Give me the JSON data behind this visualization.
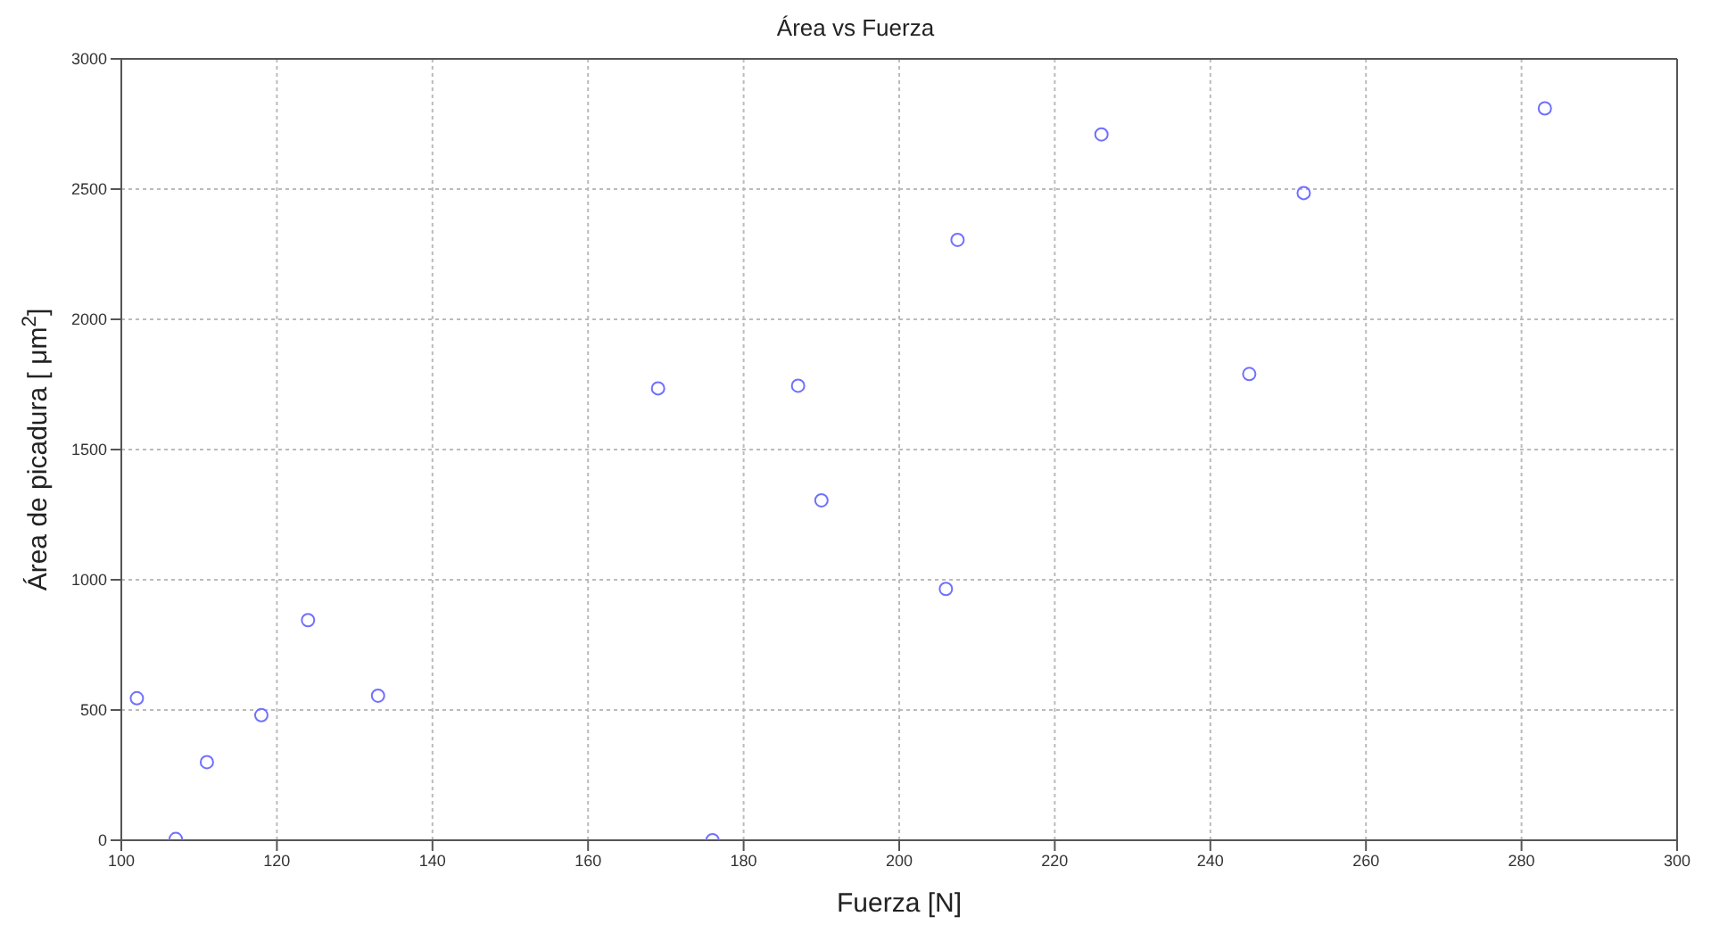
{
  "chart_data": {
    "type": "scatter",
    "title": "Área vs Fuerza",
    "xlabel": "Fuerza [N]",
    "ylabel": "Área de picadura [ μm$^{2}$]",
    "x": [
      102,
      107,
      111,
      118,
      124,
      133,
      169,
      176,
      187,
      190,
      206,
      207.5,
      226,
      245,
      252,
      283
    ],
    "values": [
      545,
      5,
      300,
      480,
      845,
      555,
      1735,
      0,
      1745,
      1305,
      965,
      2305,
      2710,
      1790,
      2485,
      2810
    ],
    "color": "#7070ff",
    "marker": "circle",
    "xlim": [
      100,
      300
    ],
    "xticks": [
      100,
      120,
      140,
      160,
      180,
      200,
      220,
      240,
      260,
      280,
      300
    ],
    "ylim": [
      0,
      3000
    ],
    "yticks": [
      0,
      500,
      1000,
      1500,
      2000,
      2500,
      3000
    ],
    "grid": true
  }
}
